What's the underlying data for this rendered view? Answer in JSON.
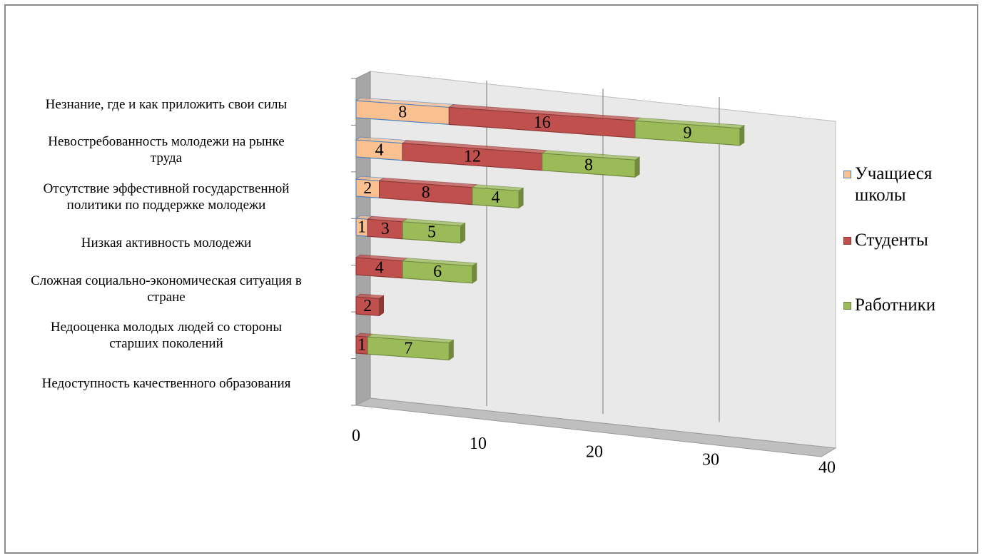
{
  "chart_data": {
    "type": "bar",
    "orientation": "horizontal",
    "stacked": true,
    "style_3d": true,
    "categories": [
      "Незнание, где и как приложить  свои силы",
      "Невостребованность молодежи на рынке труда",
      "Отсутствие эффестивной государственной политики  по поддержке молодежи",
      "Низкая активность молодежи",
      "Сложная социально-экономическая ситуация  в стране",
      "Недооценка молодых людей со стороны старших  поколений",
      "Недоступность качественного образования"
    ],
    "category_lines": [
      [
        "Незнание, где и как приложить  свои силы"
      ],
      [
        "Невостребованность молодежи на рынке",
        "труда"
      ],
      [
        "Отсутствие эффестивной государственной",
        "политики  по поддержке молодежи"
      ],
      [
        "Низкая активность молодежи"
      ],
      [
        "Сложная социально-экономическая ситуация  в",
        "стране"
      ],
      [
        "Недооценка молодых людей со стороны",
        "старших  поколений"
      ],
      [
        "Недоступность качественного образования"
      ]
    ],
    "series": [
      {
        "name": "Учащиеся школы",
        "color": "#FAC090",
        "edge": "#4F81BD",
        "values": [
          8,
          4,
          2,
          1,
          0,
          0,
          0
        ]
      },
      {
        "name": "Студенты",
        "color": "#C0504D",
        "edge": "#8C3836",
        "values": [
          16,
          12,
          8,
          3,
          4,
          2,
          1
        ]
      },
      {
        "name": "Работники",
        "color": "#9BBB59",
        "edge": "#71893F",
        "values": [
          9,
          8,
          4,
          5,
          6,
          0,
          7
        ]
      }
    ],
    "x_ticks": [
      "0",
      "10",
      "20",
      "30",
      "40"
    ],
    "xlim": [
      0,
      40
    ],
    "legend_position": "right",
    "grid": true,
    "title": "",
    "xlabel": "",
    "ylabel": ""
  },
  "legend": {
    "items": [
      {
        "lines": [
          "Учащиеся",
          "школы"
        ]
      },
      {
        "lines": [
          "Студенты"
        ]
      },
      {
        "lines": [
          "Работники"
        ]
      }
    ]
  }
}
